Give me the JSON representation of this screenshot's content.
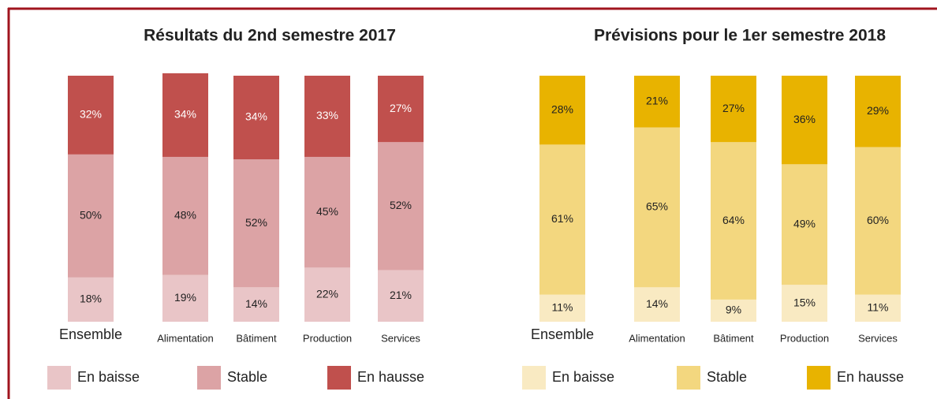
{
  "chart_data": [
    {
      "type": "stacked_bar",
      "title": "Résultats du 2nd semestre 2017",
      "categories": [
        "Ensemble",
        "Alimentation",
        "Bâtiment",
        "Production",
        "Services"
      ],
      "ylim": [
        0,
        100
      ],
      "series": [
        {
          "name": "En baisse",
          "color": "#e9c5c7",
          "values": [
            18,
            19,
            14,
            22,
            21
          ],
          "value_labels": [
            "18%",
            "19%",
            "14%",
            "22%",
            "21%"
          ]
        },
        {
          "name": "Stable",
          "color": "#dca3a5",
          "values": [
            50,
            48,
            52,
            45,
            52
          ],
          "value_labels": [
            "50%",
            "48%",
            "52%",
            "45%",
            "52%"
          ]
        },
        {
          "name": "En hausse",
          "color": "#c0504d",
          "values": [
            32,
            34,
            34,
            33,
            27
          ],
          "value_labels": [
            "32%",
            "34%",
            "34%",
            "33%",
            "27%"
          ]
        }
      ]
    },
    {
      "type": "stacked_bar",
      "title": "Prévisions pour le 1er semestre 2018",
      "categories": [
        "Ensemble",
        "Alimentation",
        "Bâtiment",
        "Production",
        "Services"
      ],
      "ylim": [
        0,
        100
      ],
      "series": [
        {
          "name": "En baisse",
          "color": "#f9eac2",
          "values": [
            11,
            14,
            9,
            15,
            11
          ],
          "value_labels": [
            "11%",
            "14%",
            "9%",
            "15%",
            "11%"
          ]
        },
        {
          "name": "Stable",
          "color": "#f3d77f",
          "values": [
            61,
            65,
            64,
            49,
            60
          ],
          "value_labels": [
            "61%",
            "65%",
            "64%",
            "49%",
            "60%"
          ]
        },
        {
          "name": "En hausse",
          "color": "#e8b300",
          "values": [
            28,
            21,
            27,
            36,
            29
          ],
          "value_labels": [
            "28%",
            "21%",
            "27%",
            "36%",
            "29%"
          ]
        }
      ]
    }
  ]
}
